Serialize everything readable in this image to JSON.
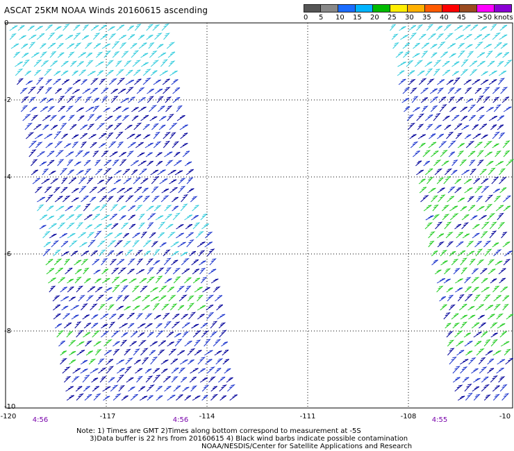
{
  "title": "ASCAT 25KM NOAA Winds 20160615 ascending",
  "colorbar": {
    "segments": [
      {
        "color": "#555555"
      },
      {
        "color": "#888888"
      },
      {
        "color": "#1a6cff"
      },
      {
        "color": "#00b4ff"
      },
      {
        "color": "#00bb00"
      },
      {
        "color": "#ffee00"
      },
      {
        "color": "#ffb000"
      },
      {
        "color": "#ff5a00"
      },
      {
        "color": "#ff0000"
      },
      {
        "color": "#9b4a1f"
      },
      {
        "color": "#ff00ff"
      },
      {
        "color": "#8a00d4"
      }
    ],
    "labels": [
      "0",
      "5",
      "10",
      "15",
      "20",
      "25",
      "30",
      "35",
      "40",
      "45",
      ">50 knots"
    ]
  },
  "axes": {
    "lon_labels": [
      "-120",
      "-117",
      "-114",
      "-111",
      "-108",
      "-10"
    ],
    "lat_labels": [
      "0",
      "-2",
      "-4",
      "-6",
      "-8",
      "-10"
    ]
  },
  "times": [
    "4:56",
    "4:56",
    "4:55"
  ],
  "note_line1": "Note: 1) Times are GMT 2)Times along bottom correspond to measurement at -5S",
  "note_line2": "      3)Data buffer is 22 hrs from 20160615 4) Black wind barbs indicate possible contamination",
  "credit": "NOAA/NESDIS/Center for Satellite Applications and Research",
  "palette": {
    "cyan": "#33ccdd",
    "blue": "#1a33cc",
    "navy": "#000099",
    "green": "#22cc22",
    "time": "#7700aa"
  }
}
